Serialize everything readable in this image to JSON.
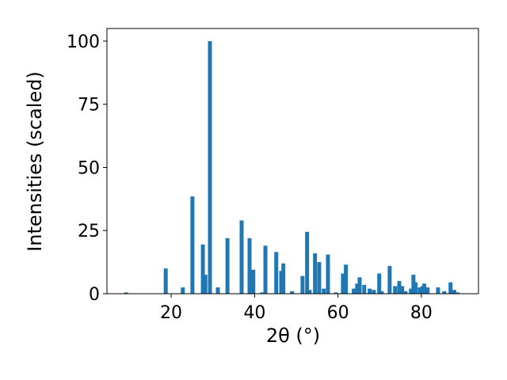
{
  "chart_data": {
    "type": "bar",
    "x_label": "2θ (°)",
    "y_label": "Intensities (scaled)",
    "x": [
      9.2,
      18.7,
      22.8,
      25.1,
      27.6,
      28.2,
      29.3,
      31.2,
      33.5,
      36.9,
      38.8,
      39.7,
      41.8,
      42.6,
      45.2,
      46.4,
      46.9,
      49.0,
      51.5,
      52.6,
      53.2,
      54.5,
      55.5,
      56.6,
      57.6,
      59.5,
      61.2,
      61.9,
      63.8,
      64.6,
      65.2,
      66.3,
      67.6,
      68.6,
      69.9,
      70.5,
      72.4,
      73.7,
      74.7,
      75.4,
      76.2,
      77.5,
      78.1,
      78.6,
      79.6,
      80.3,
      80.7,
      81.5,
      84.0,
      85.5,
      87.0,
      87.9,
      88.7
    ],
    "values": [
      0.5,
      10,
      2.5,
      38.5,
      19.5,
      7.5,
      100,
      2.5,
      22,
      29,
      22,
      9.5,
      0.5,
      19,
      16.5,
      9,
      12,
      1,
      7,
      24.5,
      1.5,
      16,
      12.5,
      2,
      15.5,
      0.5,
      8,
      11.5,
      2,
      4,
      6.5,
      3.5,
      2,
      1.5,
      8,
      1,
      11,
      3,
      5,
      3,
      1,
      2,
      7.5,
      4.5,
      2.5,
      3,
      4,
      2.5,
      2.5,
      1,
      4.5,
      1.5,
      0.5
    ],
    "color": "#1f77b4",
    "xlim": [
      4.6,
      93.7
    ],
    "xticks": [
      20,
      40,
      60,
      80
    ],
    "ylim": [
      0,
      105
    ],
    "yticks": [
      0,
      25,
      50,
      75,
      100
    ],
    "grid": false
  }
}
